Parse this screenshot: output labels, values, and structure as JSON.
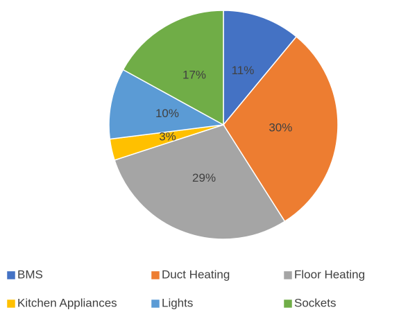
{
  "chart_data": {
    "type": "pie",
    "categories": [
      "BMS",
      "Duct Heating",
      "Floor Heating",
      "Kitchen Appliances",
      "Lights",
      "Sockets"
    ],
    "values": [
      11,
      30,
      29,
      3,
      10,
      17
    ],
    "value_labels": [
      "11%",
      "30%",
      "29%",
      "3%",
      "10%",
      "17%"
    ],
    "colors": [
      "#4472c4",
      "#ed7d31",
      "#a5a5a5",
      "#ffc000",
      "#5b9bd5",
      "#70ad47"
    ],
    "legend": "bottom"
  }
}
